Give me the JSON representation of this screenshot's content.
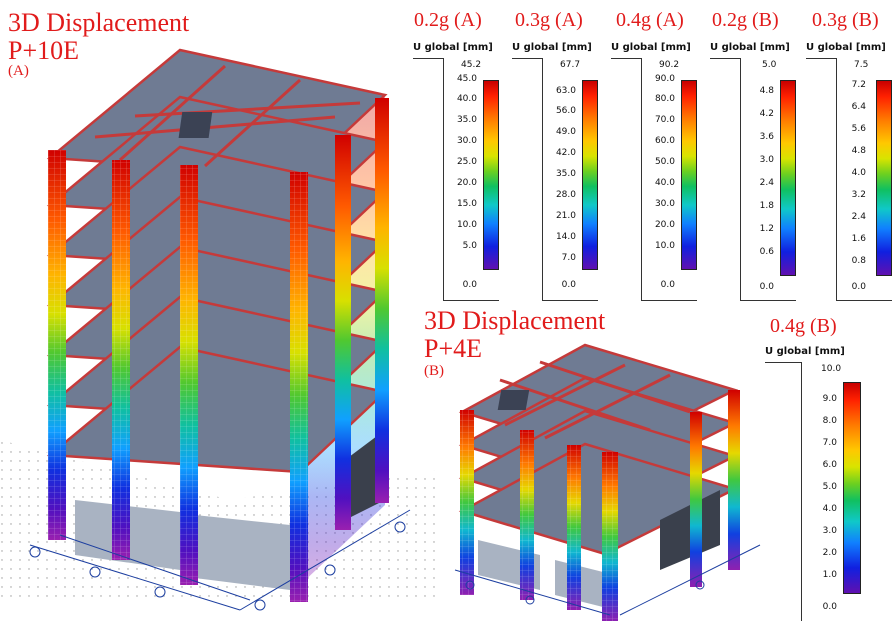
{
  "colors": {
    "title": "#e11b1b",
    "slab": "#6f7b93",
    "beam": "#c53a3a"
  },
  "model_a": {
    "title_line1": "3D Displacement",
    "title_line2": "P+10E",
    "tag": "(A)"
  },
  "model_b": {
    "title_line1": "3D Displacement",
    "title_line2": "P+4E",
    "tag": "(B)"
  },
  "legends": [
    {
      "case": "0.2g (A)",
      "header": "U global [mm]",
      "max": "45.2",
      "ticks": [
        "45.0",
        "40.0",
        "35.0",
        "30.0",
        "25.0",
        "20.0",
        "15.0",
        "10.0",
        "5.0",
        "0.0"
      ]
    },
    {
      "case": "0.3g (A)",
      "header": "U global [mm]",
      "max": "67.7",
      "ticks": [
        "63.0",
        "56.0",
        "49.0",
        "42.0",
        "35.0",
        "28.0",
        "21.0",
        "14.0",
        "7.0",
        "0.0"
      ]
    },
    {
      "case": "0.4g (A)",
      "header": "U global [mm]",
      "max": "90.2",
      "ticks": [
        "90.0",
        "80.0",
        "70.0",
        "60.0",
        "50.0",
        "40.0",
        "30.0",
        "20.0",
        "10.0",
        "0.0"
      ]
    },
    {
      "case": "0.2g (B)",
      "header": "U global [mm]",
      "max": "5.0",
      "ticks": [
        "4.8",
        "4.2",
        "3.6",
        "3.0",
        "2.4",
        "1.8",
        "1.2",
        "0.6",
        "0.0"
      ]
    },
    {
      "case": "0.3g (B)",
      "header": "U global [mm]",
      "max": "7.5",
      "ticks": [
        "7.2",
        "6.4",
        "5.6",
        "4.8",
        "4.0",
        "3.2",
        "2.4",
        "1.6",
        "0.8",
        "0.0"
      ]
    },
    {
      "case": "0.4g (B)",
      "header": "U global [mm]",
      "max": "10.0",
      "ticks": [
        "9.0",
        "8.0",
        "7.0",
        "6.0",
        "5.0",
        "4.0",
        "3.0",
        "2.0",
        "1.0",
        "0.0"
      ]
    }
  ]
}
